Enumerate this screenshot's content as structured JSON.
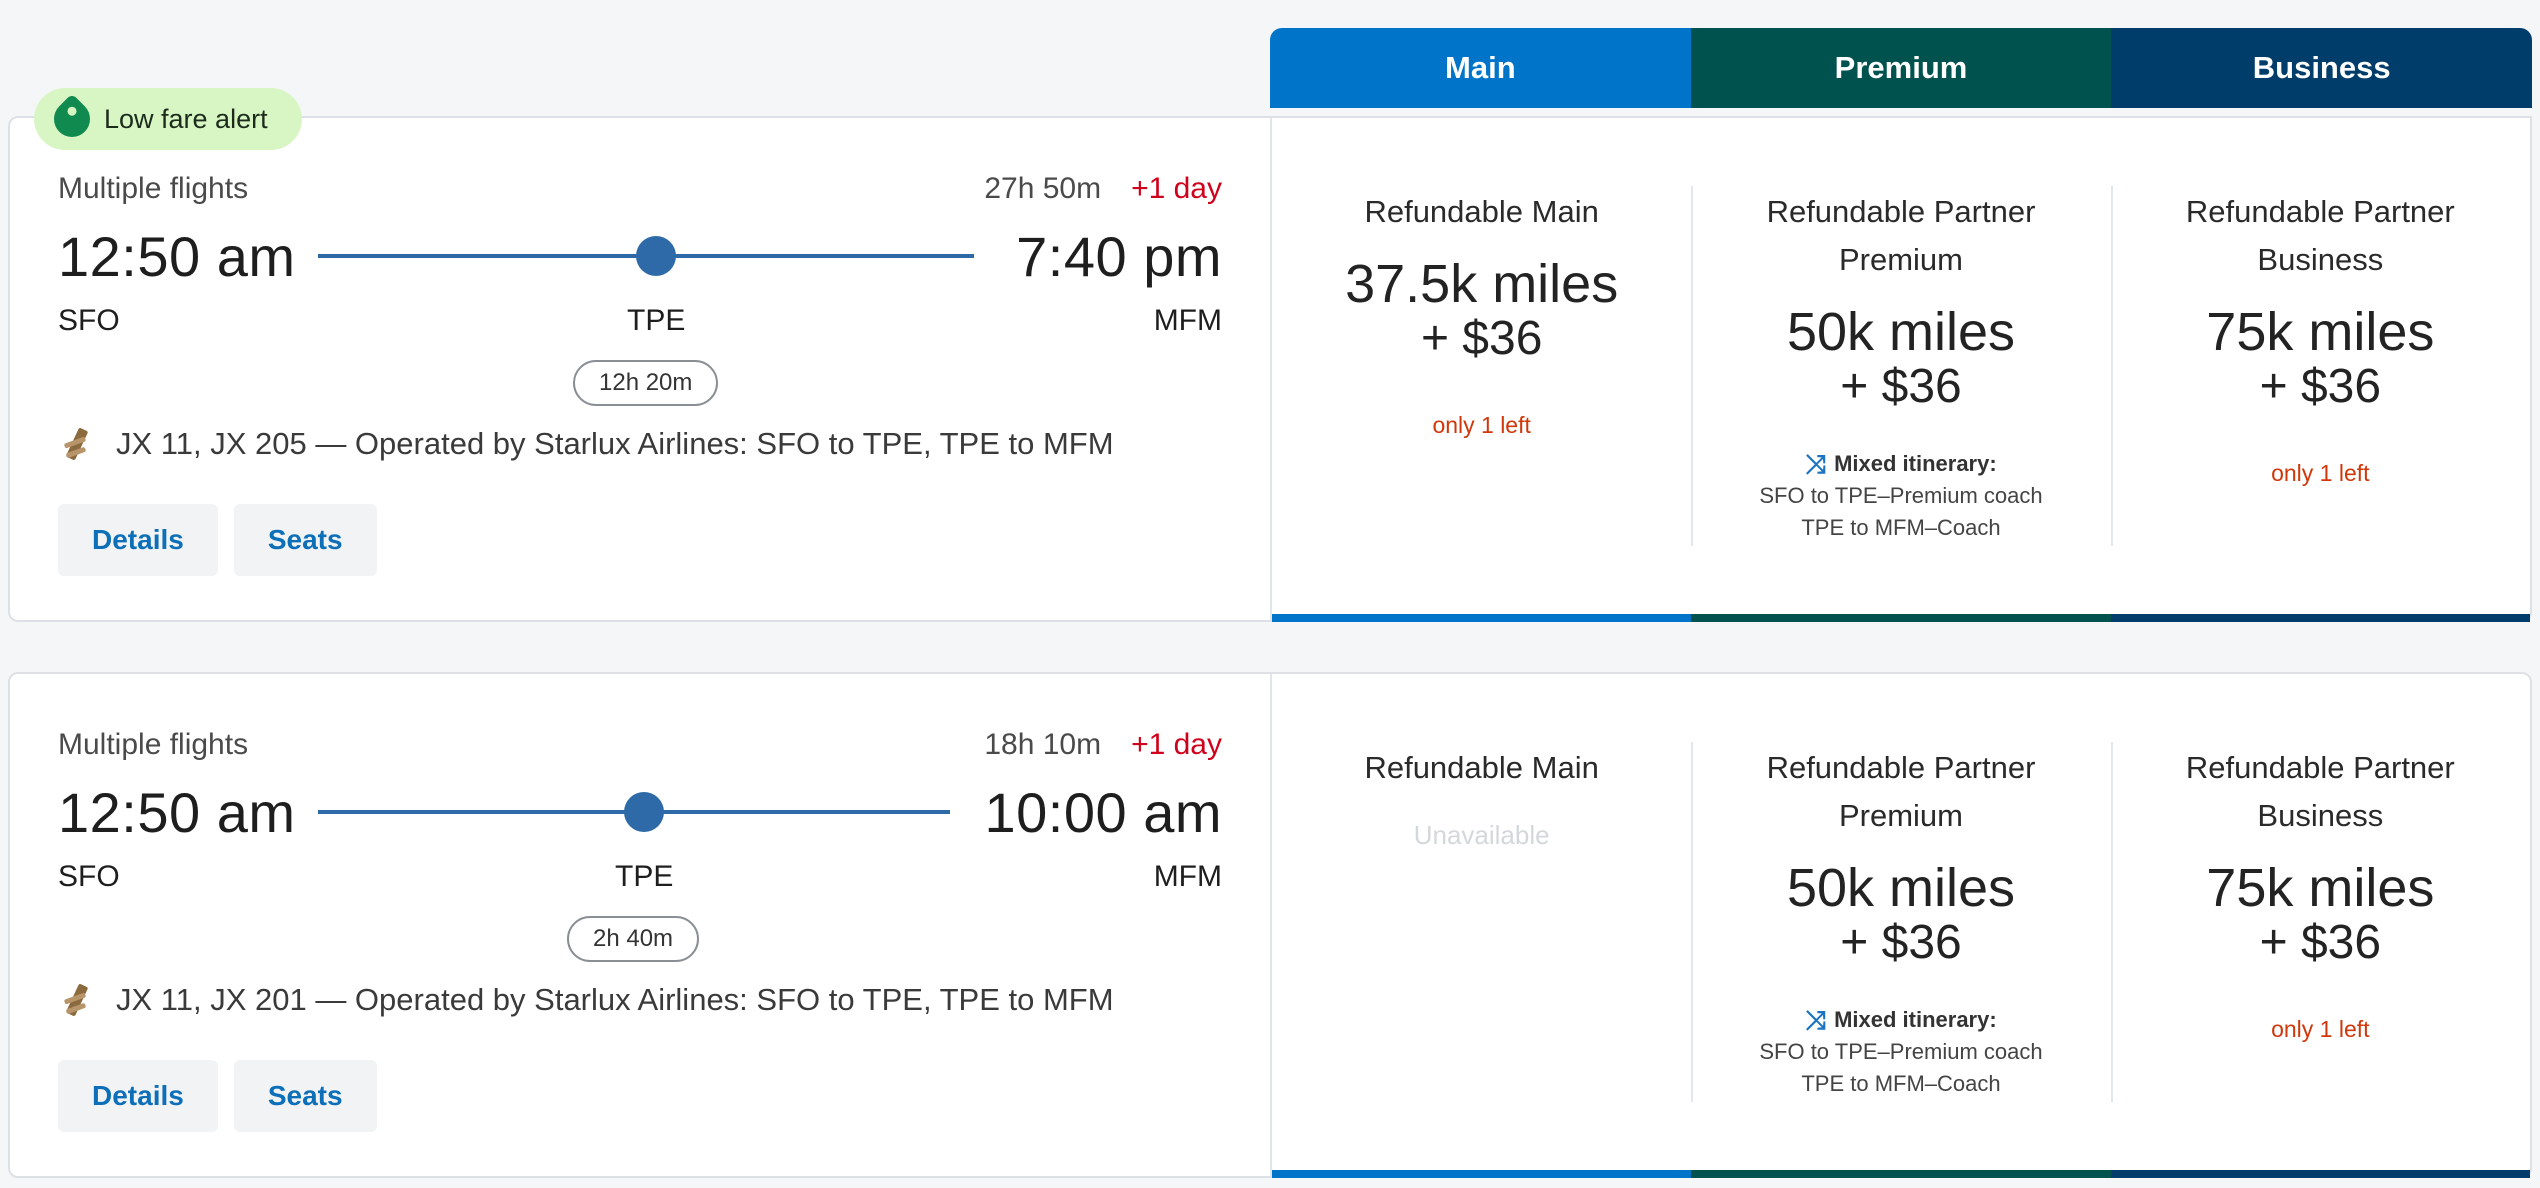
{
  "cabins": [
    {
      "label": "Main",
      "color": "#0074c8"
    },
    {
      "label": "Premium",
      "color": "#00524f"
    },
    {
      "label": "Business",
      "color": "#003d6b"
    }
  ],
  "flights": [
    {
      "badge": "Low fare alert",
      "type": "Multiple flights",
      "duration": "27h 50m",
      "plus_day": "+1 day",
      "depart_time": "12:50 am",
      "arrive_time": "7:40 pm",
      "origin": "SFO",
      "stop": "TPE",
      "destination": "MFM",
      "layover": "12h 20m",
      "operated": "JX 11, JX 205 — Operated by Starlux Airlines: SFO to TPE, TPE to MFM",
      "details_label": "Details",
      "seats_label": "Seats",
      "fares": {
        "main": {
          "title": "Refundable Main",
          "miles": "37.5k miles",
          "tax": "+ $36",
          "availability": "only 1 left"
        },
        "premium": {
          "title": "Refundable Partner Premium",
          "miles": "50k miles",
          "tax": "+ $36",
          "mixed_label": "Mixed itinerary:",
          "mixed_line1": "SFO to TPE–Premium coach",
          "mixed_line2": "TPE to MFM–Coach"
        },
        "business": {
          "title": "Refundable Partner Business",
          "miles": "75k miles",
          "tax": "+ $36",
          "availability": "only 1 left"
        }
      }
    },
    {
      "type": "Multiple flights",
      "duration": "18h 10m",
      "plus_day": "+1 day",
      "depart_time": "12:50 am",
      "arrive_time": "10:00 am",
      "origin": "SFO",
      "stop": "TPE",
      "destination": "MFM",
      "layover": "2h 40m",
      "operated": "JX 11, JX 201 — Operated by Starlux Airlines: SFO to TPE, TPE to MFM",
      "details_label": "Details",
      "seats_label": "Seats",
      "fares": {
        "main": {
          "title": "Refundable Main",
          "unavailable": "Unavailable"
        },
        "premium": {
          "title": "Refundable Partner Premium",
          "miles": "50k miles",
          "tax": "+ $36",
          "mixed_label": "Mixed itinerary:",
          "mixed_line1": "SFO to TPE–Premium coach",
          "mixed_line2": "TPE to MFM–Coach"
        },
        "business": {
          "title": "Refundable Partner Business",
          "miles": "75k miles",
          "tax": "+ $36",
          "availability": "only 1 left"
        }
      }
    }
  ]
}
